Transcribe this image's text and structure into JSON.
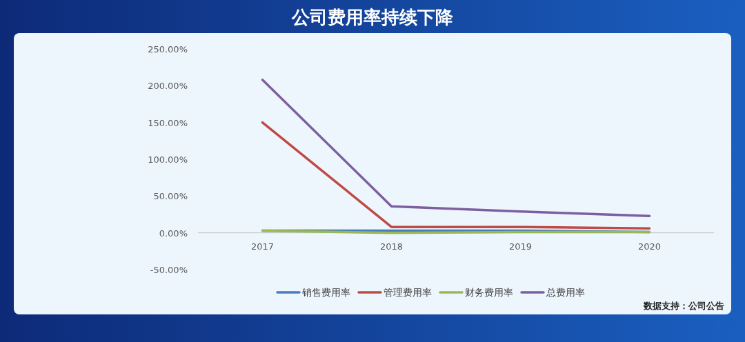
{
  "chart_data": {
    "type": "line",
    "title": "公司费用率持续下降",
    "categories": [
      "2017",
      "2018",
      "2019",
      "2020"
    ],
    "series": [
      {
        "name": "销售费用率",
        "color": "#4a7ebb",
        "values": [
          3,
          3,
          3,
          1
        ]
      },
      {
        "name": "管理费用率",
        "color": "#be4b48",
        "values": [
          150,
          8,
          8,
          6
        ]
      },
      {
        "name": "财务费用率",
        "color": "#98b954",
        "values": [
          3,
          0,
          1,
          1
        ]
      },
      {
        "name": "总费用率",
        "color": "#7d5fa0",
        "values": [
          208,
          36,
          29,
          23
        ]
      }
    ],
    "ylim": [
      -50,
      250
    ],
    "yticks": [
      {
        "value": -50,
        "label": "-50.00%"
      },
      {
        "value": 0,
        "label": "0.00%"
      },
      {
        "value": 50,
        "label": "50.00%"
      },
      {
        "value": 100,
        "label": "100.00%"
      },
      {
        "value": 150,
        "label": "150.00%"
      },
      {
        "value": 200,
        "label": "200.00%"
      },
      {
        "value": 250,
        "label": "250.00%"
      }
    ],
    "grid": false,
    "legend": "bottom",
    "marker": "none",
    "line_style": "solid",
    "annotations": [
      "数据支持：公司公告"
    ]
  }
}
